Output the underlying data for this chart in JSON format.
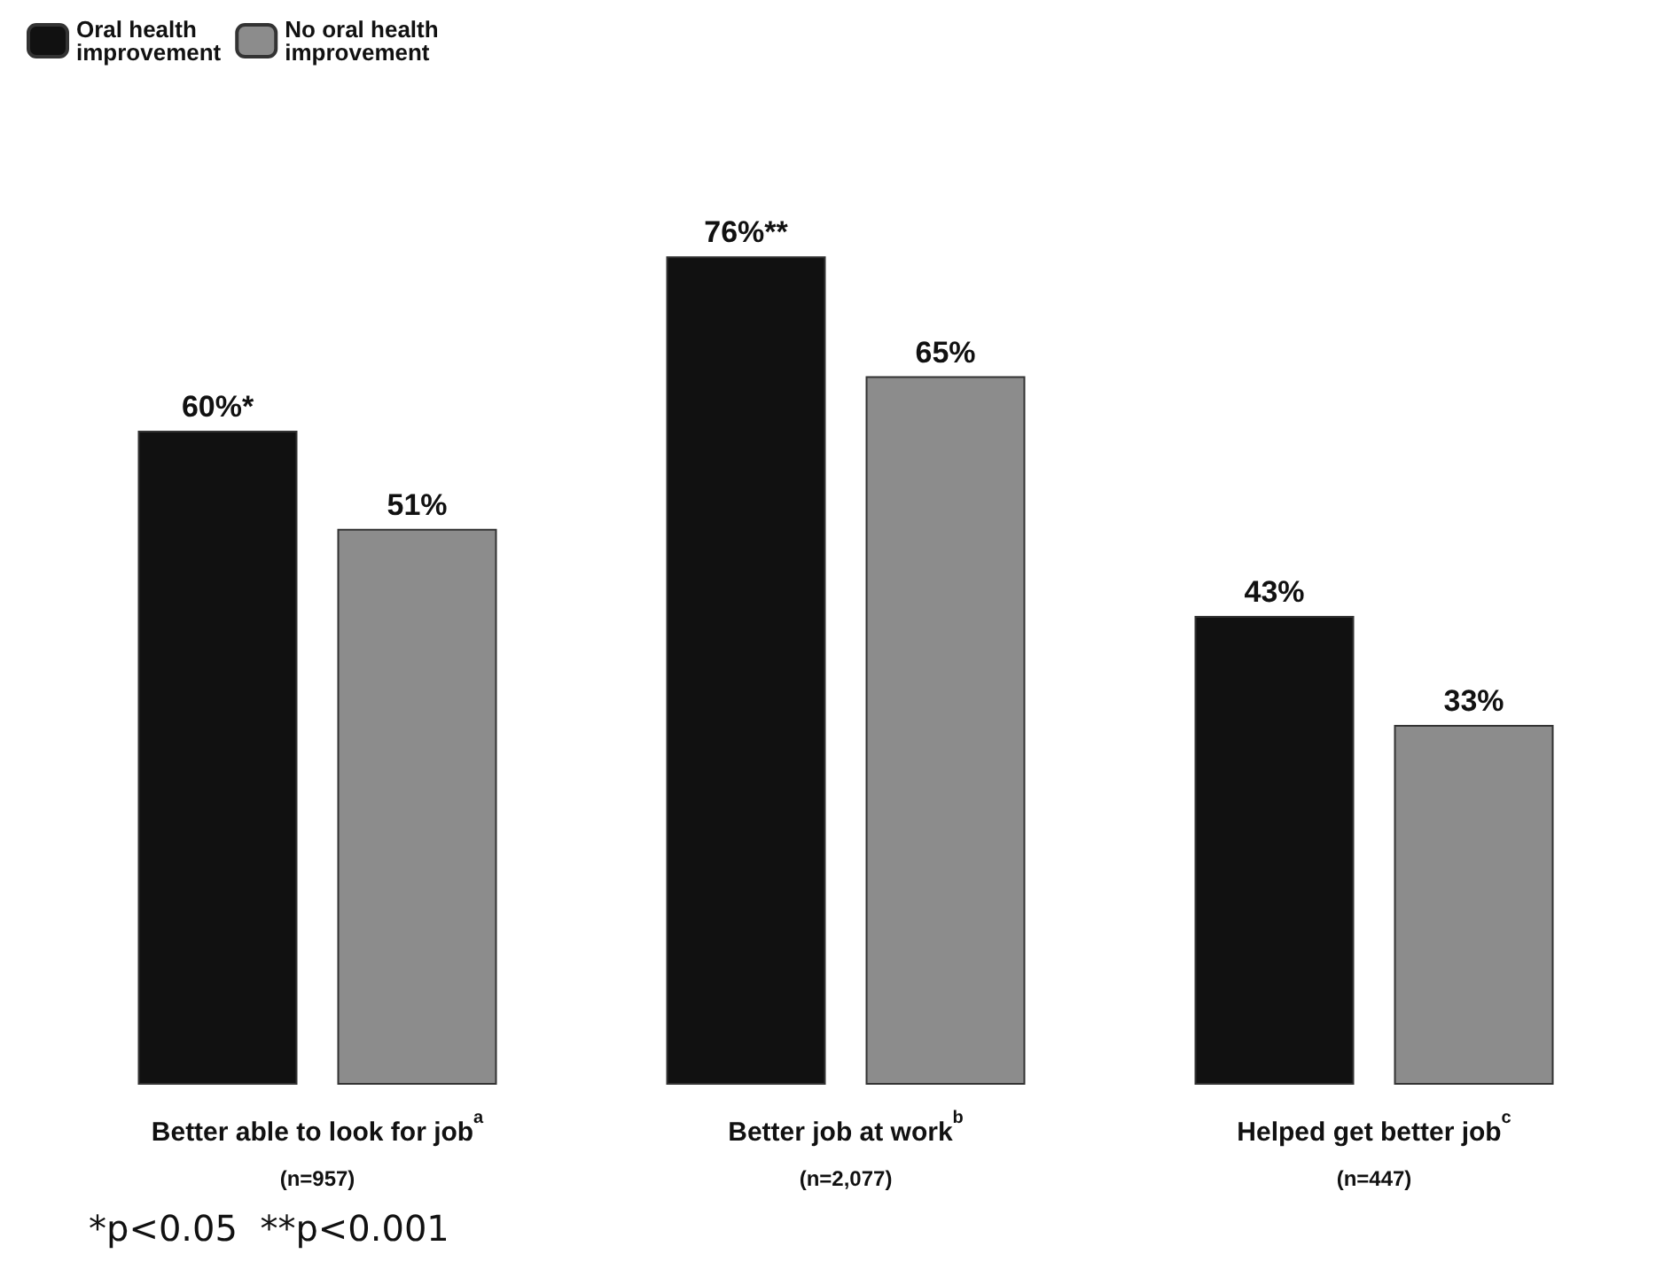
{
  "chart_data": {
    "type": "bar",
    "categories": [
      "Better able to look for job$^{a}$\n(n=957)",
      "Better job at work$^{b}$\n(n=2,077)",
      "Helped get better job$^{c}$\n(n=447)"
    ],
    "series": [
      {
        "name": "Oral health\nimprovement",
        "color": "#111111",
        "values": [
          60,
          76,
          43
        ],
        "value_labels": [
          "60%*",
          "76%**",
          "43%"
        ]
      },
      {
        "name": "No oral health\nimprovement",
        "color": "#8c8c8c",
        "values": [
          51,
          65,
          33
        ],
        "value_labels": [
          "51%",
          "65%",
          "33%"
        ]
      }
    ],
    "legend": "top left",
    "annotations": [
      "*p<0.05  **p<0.001"
    ]
  }
}
